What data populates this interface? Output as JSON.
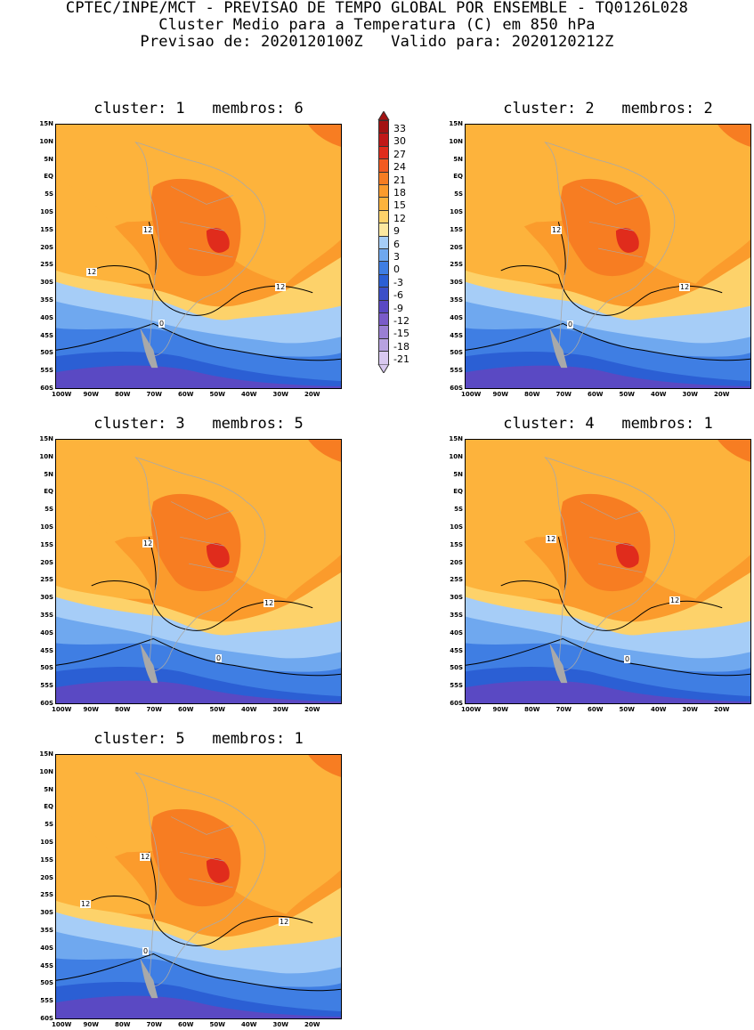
{
  "header": {
    "line1": "CPTEC/INPE/MCT - PREVISAO DE TEMPO GLOBAL POR ENSEMBLE - TQ0126L028",
    "line2": "Cluster Medio para a Temperatura (C) em 850 hPa",
    "line3": "Previsao de: 2020120100Z   Valido para: 2020120212Z"
  },
  "axes": {
    "lat_ticks": [
      "15N",
      "10N",
      "5N",
      "EQ",
      "5S",
      "10S",
      "15S",
      "20S",
      "25S",
      "30S",
      "35S",
      "40S",
      "45S",
      "50S",
      "55S",
      "60S"
    ],
    "lon_ticks": [
      "100W",
      "90W",
      "80W",
      "70W",
      "60W",
      "50W",
      "40W",
      "30W",
      "20W"
    ]
  },
  "panels": [
    {
      "title": "cluster: 1   membros: 6",
      "contour_labels": [
        "12",
        "12",
        "12",
        "0"
      ]
    },
    {
      "title": "cluster: 2   membros: 2",
      "contour_labels": [
        "12",
        "12",
        "0"
      ]
    },
    {
      "title": "cluster: 3   membros: 5",
      "contour_labels": [
        "12",
        "12",
        "0"
      ]
    },
    {
      "title": "cluster: 4   membros: 1",
      "contour_labels": [
        "12",
        "12",
        "0"
      ]
    },
    {
      "title": "cluster: 5   membros: 1",
      "contour_labels": [
        "12",
        "12",
        "12",
        "0"
      ]
    }
  ],
  "colorbar": {
    "labels": [
      "33",
      "30",
      "27",
      "24",
      "21",
      "18",
      "15",
      "12",
      "9",
      "6",
      "3",
      "0",
      "-3",
      "-6",
      "-9",
      "-12",
      "-15",
      "-18",
      "-21"
    ],
    "colors": [
      "#a31212",
      "#c01818",
      "#e02c1c",
      "#f25a20",
      "#f77d22",
      "#fb9b2c",
      "#fdb33c",
      "#fdd26a",
      "#fde8a0",
      "#a6cdf7",
      "#6fa8ef",
      "#3f7ee3",
      "#2b5fd4",
      "#3b4fc8",
      "#5a49c3",
      "#7a5bc9",
      "#9a7fd4",
      "#b7a2e0",
      "#d8c8f0"
    ]
  }
}
